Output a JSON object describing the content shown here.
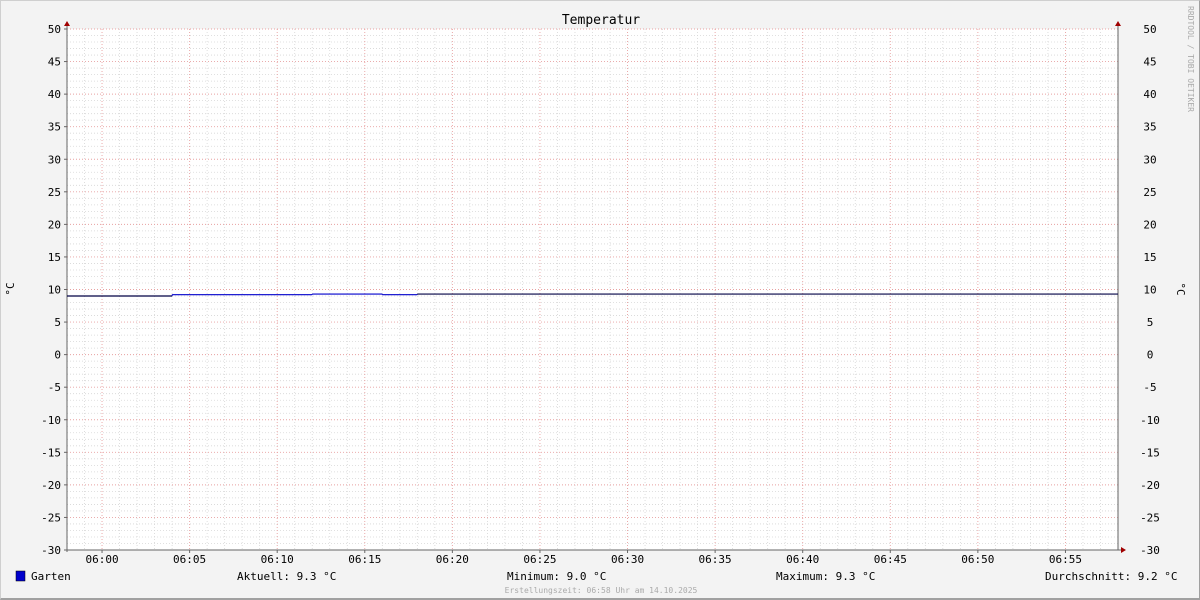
{
  "chart_data": {
    "type": "line",
    "title": "Temperatur",
    "ylabel": "°C",
    "ylabel_right": "°C",
    "ylim": [
      -30,
      50
    ],
    "yticks": [
      50,
      45,
      40,
      35,
      30,
      25,
      20,
      15,
      10,
      5,
      0,
      -5,
      -10,
      -15,
      -20,
      -25,
      -30
    ],
    "xlim": [
      "05:58",
      "06:58"
    ],
    "xticks": [
      "06:00",
      "06:05",
      "06:10",
      "06:15",
      "06:20",
      "06:25",
      "06:30",
      "06:35",
      "06:40",
      "06:45",
      "06:50",
      "06:55"
    ],
    "grid": true,
    "series": [
      {
        "name": "Garten",
        "color": "#0000cc",
        "step": true,
        "points": [
          {
            "x": "05:58",
            "y": 9.0
          },
          {
            "x": "06:04",
            "y": 9.2
          },
          {
            "x": "06:12",
            "y": 9.3
          },
          {
            "x": "06:16",
            "y": 9.2
          },
          {
            "x": "06:18",
            "y": 9.3
          },
          {
            "x": "06:58",
            "y": 9.3
          }
        ]
      }
    ],
    "legend": {
      "placement": "bottom",
      "name": "Garten",
      "aktuell": "Aktuell: 9.3 °C",
      "minimum": "Minimum: 9.0 °C",
      "maximum": "Maximum: 9.3 °C",
      "durchschnitt": "Durchschnitt: 9.2 °C"
    },
    "watermark": "RRDTOOL / TOBI OETIKER",
    "footer": "Erstellungszeit: 06:58 Uhr am 14.10.2025"
  }
}
